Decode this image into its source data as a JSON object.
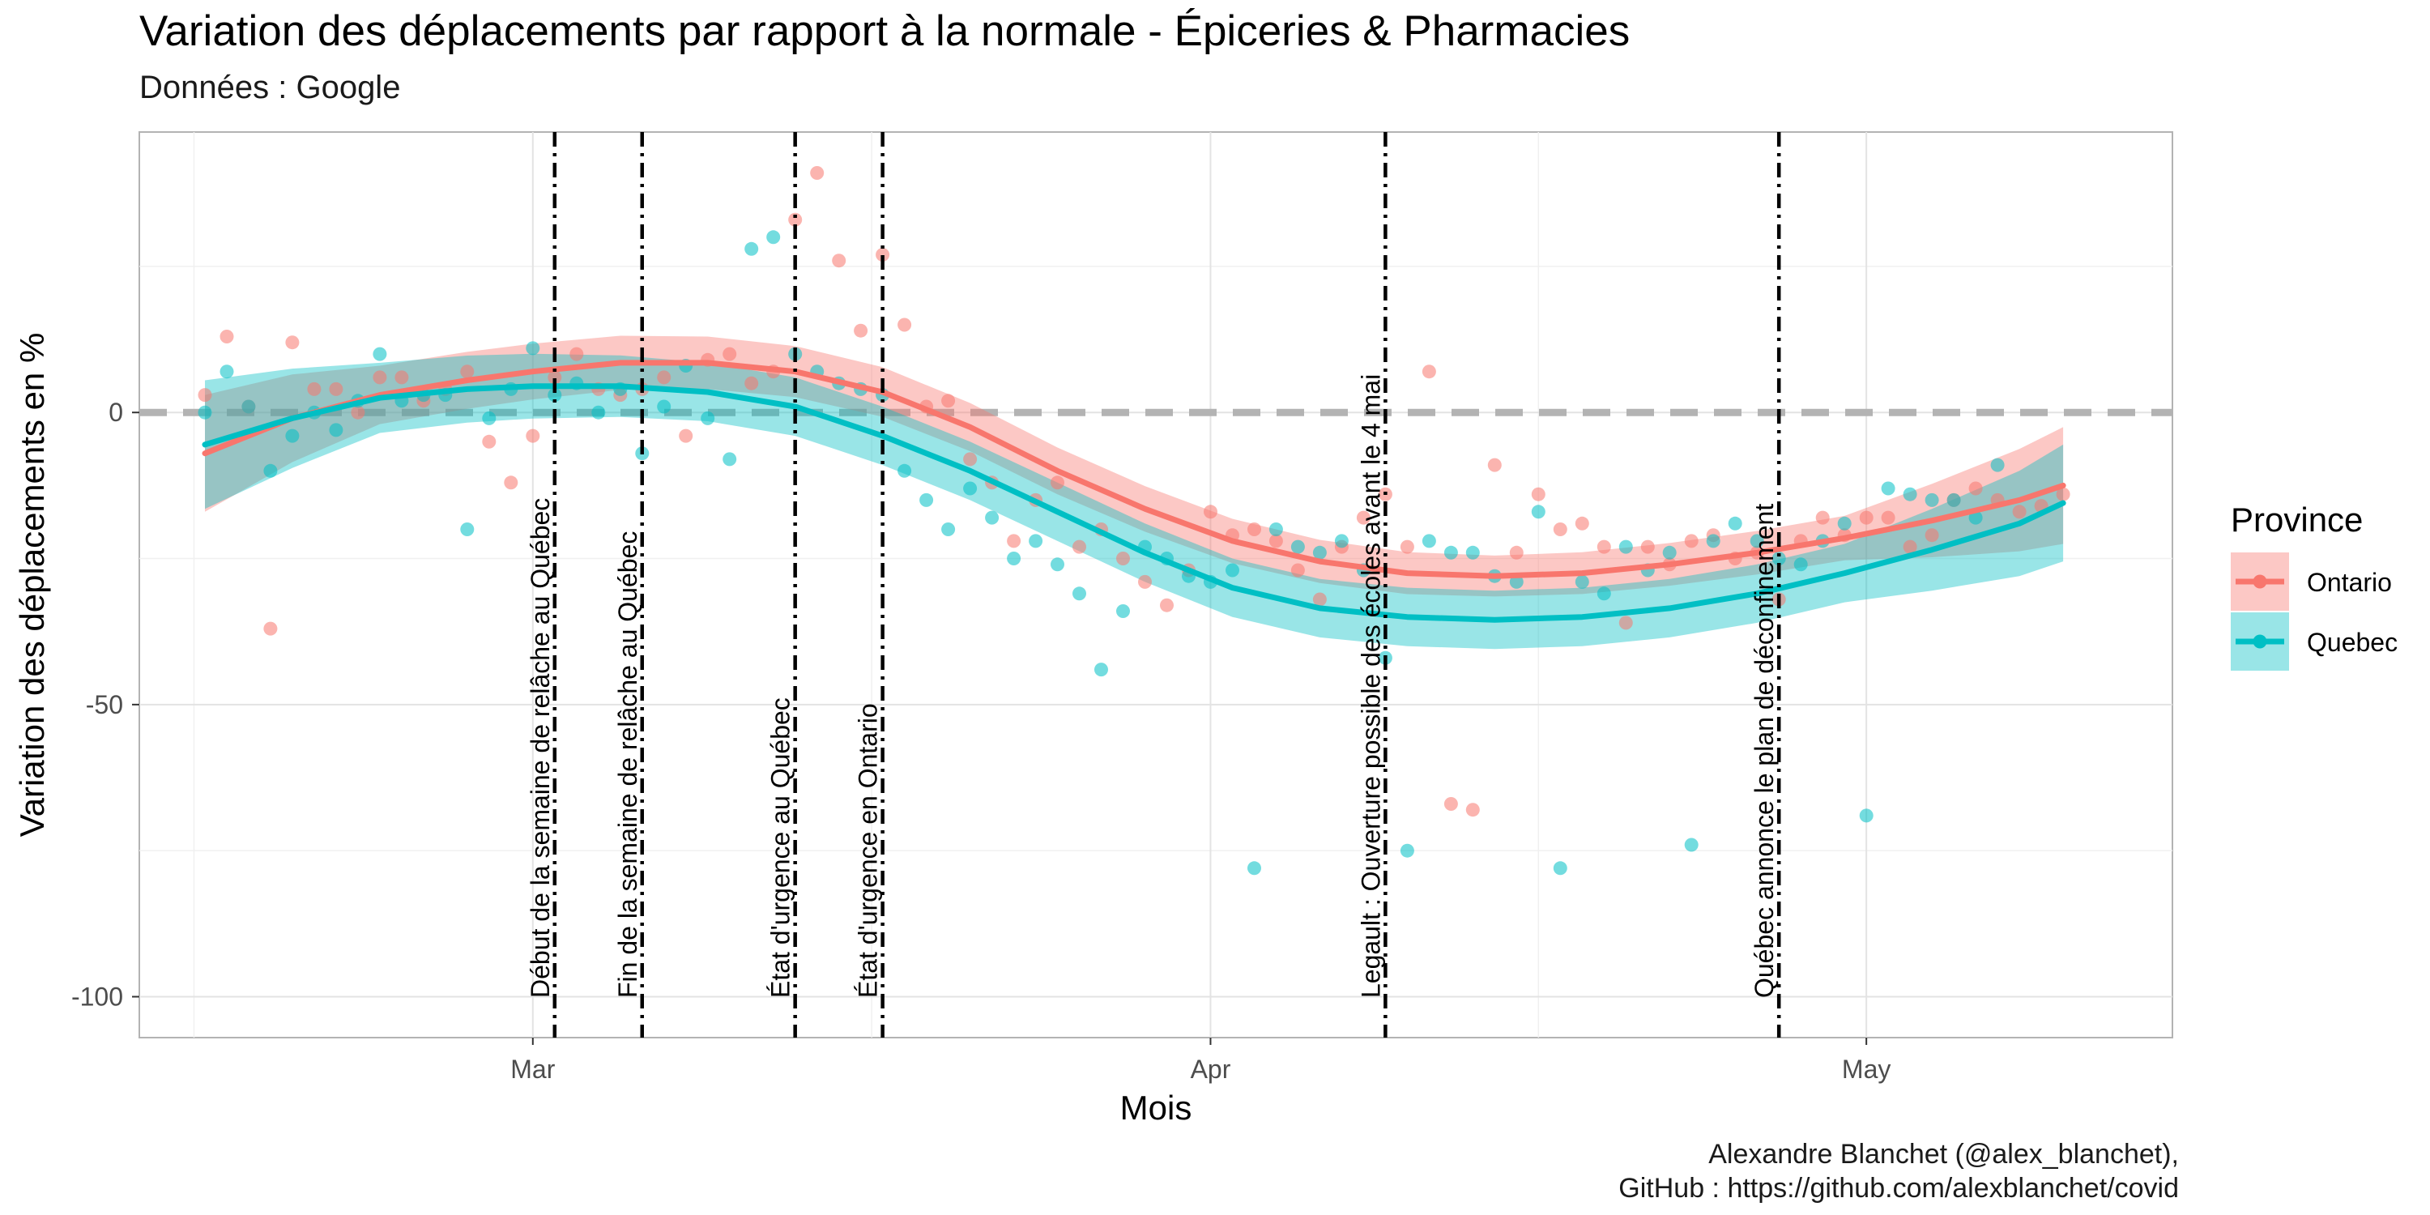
{
  "chart_data": {
    "type": "scatter",
    "title": "Variation des déplacements par rapport à la normale - Épiceries & Pharmacies",
    "subtitle": "Données : Google",
    "xlabel": "Mois",
    "ylabel": "Variation des déplacements en %",
    "caption_lines": [
      "Alexandre Blanchet (@alex_blanchet),",
      "GitHub : https://github.com/alexblanchet/covid"
    ],
    "x_axis": {
      "type": "date",
      "range": [
        "2020-02-12",
        "2020-05-15"
      ],
      "ticks": [
        "2020-03-01",
        "2020-04-01",
        "2020-05-01"
      ],
      "tick_labels": [
        "Mar",
        "Apr",
        "May"
      ]
    },
    "y_axis": {
      "range": [
        -107,
        48
      ],
      "ticks": [
        -100,
        -50,
        0
      ],
      "tick_labels": [
        "-100",
        "-50",
        "0"
      ]
    },
    "grid": true,
    "reference_line": {
      "y": 0,
      "style": "dashed",
      "color": "#b3b3b3"
    },
    "legend": {
      "title": "Province",
      "position": "right",
      "entries": [
        "Ontario",
        "Quebec"
      ]
    },
    "events": [
      {
        "date": "2020-03-02",
        "label": "Début de la semaine de relâche au Québec"
      },
      {
        "date": "2020-03-06",
        "label": "Fin de la semaine de relâche au Québec"
      },
      {
        "date": "2020-03-13",
        "label": "État d'urgence au Québec"
      },
      {
        "date": "2020-03-17",
        "label": "État d'urgence en Ontario"
      },
      {
        "date": "2020-04-09",
        "label": "Legault : Ouverture possible des écoles avant le 4 mai"
      },
      {
        "date": "2020-04-27",
        "label": "Québec annonce le plan de déconfinement"
      }
    ],
    "series": [
      {
        "name": "Ontario",
        "color": "#F8766D",
        "points": [
          [
            "2020-02-15",
            3
          ],
          [
            "2020-02-16",
            13
          ],
          [
            "2020-02-17",
            1
          ],
          [
            "2020-02-18",
            -37
          ],
          [
            "2020-02-19",
            12
          ],
          [
            "2020-02-20",
            4
          ],
          [
            "2020-02-21",
            4
          ],
          [
            "2020-02-22",
            0
          ],
          [
            "2020-02-23",
            6
          ],
          [
            "2020-02-24",
            6
          ],
          [
            "2020-02-25",
            2
          ],
          [
            "2020-02-26",
            4
          ],
          [
            "2020-02-27",
            7
          ],
          [
            "2020-02-28",
            -5
          ],
          [
            "2020-02-29",
            -12
          ],
          [
            "2020-03-01",
            -4
          ],
          [
            "2020-03-02",
            6
          ],
          [
            "2020-03-03",
            10
          ],
          [
            "2020-03-04",
            4
          ],
          [
            "2020-03-05",
            3
          ],
          [
            "2020-03-06",
            4
          ],
          [
            "2020-03-07",
            6
          ],
          [
            "2020-03-08",
            -4
          ],
          [
            "2020-03-09",
            9
          ],
          [
            "2020-03-10",
            10
          ],
          [
            "2020-03-11",
            5
          ],
          [
            "2020-03-12",
            7
          ],
          [
            "2020-03-13",
            33
          ],
          [
            "2020-03-14",
            41
          ],
          [
            "2020-03-15",
            26
          ],
          [
            "2020-03-16",
            14
          ],
          [
            "2020-03-17",
            27
          ],
          [
            "2020-03-18",
            15
          ],
          [
            "2020-03-19",
            1
          ],
          [
            "2020-03-20",
            2
          ],
          [
            "2020-03-21",
            -8
          ],
          [
            "2020-03-22",
            -12
          ],
          [
            "2020-03-23",
            -22
          ],
          [
            "2020-03-24",
            -15
          ],
          [
            "2020-03-25",
            -12
          ],
          [
            "2020-03-26",
            -23
          ],
          [
            "2020-03-27",
            -20
          ],
          [
            "2020-03-28",
            -25
          ],
          [
            "2020-03-29",
            -29
          ],
          [
            "2020-03-30",
            -33
          ],
          [
            "2020-03-31",
            -27
          ],
          [
            "2020-04-01",
            -17
          ],
          [
            "2020-04-02",
            -21
          ],
          [
            "2020-04-03",
            -20
          ],
          [
            "2020-04-04",
            -22
          ],
          [
            "2020-04-05",
            -27
          ],
          [
            "2020-04-06",
            -32
          ],
          [
            "2020-04-07",
            -23
          ],
          [
            "2020-04-08",
            -18
          ],
          [
            "2020-04-09",
            -14
          ],
          [
            "2020-04-10",
            -23
          ],
          [
            "2020-04-11",
            7
          ],
          [
            "2020-04-12",
            -67
          ],
          [
            "2020-04-13",
            -68
          ],
          [
            "2020-04-14",
            -9
          ],
          [
            "2020-04-15",
            -24
          ],
          [
            "2020-04-16",
            -14
          ],
          [
            "2020-04-17",
            -20
          ],
          [
            "2020-04-18",
            -19
          ],
          [
            "2020-04-19",
            -23
          ],
          [
            "2020-04-20",
            -36
          ],
          [
            "2020-04-21",
            -23
          ],
          [
            "2020-04-22",
            -26
          ],
          [
            "2020-04-23",
            -22
          ],
          [
            "2020-04-24",
            -21
          ],
          [
            "2020-04-25",
            -25
          ],
          [
            "2020-04-26",
            -24
          ],
          [
            "2020-04-27",
            -32
          ],
          [
            "2020-04-28",
            -22
          ],
          [
            "2020-04-29",
            -18
          ],
          [
            "2020-04-30",
            -21
          ],
          [
            "2020-05-01",
            -18
          ],
          [
            "2020-05-02",
            -18
          ],
          [
            "2020-05-03",
            -23
          ],
          [
            "2020-05-04",
            -21
          ],
          [
            "2020-05-05",
            -15
          ],
          [
            "2020-05-06",
            -13
          ],
          [
            "2020-05-07",
            -15
          ],
          [
            "2020-05-08",
            -17
          ],
          [
            "2020-05-09",
            -16
          ],
          [
            "2020-05-10",
            -14
          ]
        ],
        "smooth_fit": [
          [
            "2020-02-15",
            -7
          ],
          [
            "2020-02-19",
            -1
          ],
          [
            "2020-02-23",
            3
          ],
          [
            "2020-02-27",
            5.5
          ],
          [
            "2020-03-01",
            7
          ],
          [
            "2020-03-05",
            8.5
          ],
          [
            "2020-03-09",
            8.5
          ],
          [
            "2020-03-13",
            7
          ],
          [
            "2020-03-17",
            3.5
          ],
          [
            "2020-03-21",
            -2.5
          ],
          [
            "2020-03-25",
            -10
          ],
          [
            "2020-03-29",
            -16.5
          ],
          [
            "2020-04-02",
            -22
          ],
          [
            "2020-04-06",
            -25.5
          ],
          [
            "2020-04-10",
            -27.5
          ],
          [
            "2020-04-14",
            -28
          ],
          [
            "2020-04-18",
            -27.5
          ],
          [
            "2020-04-22",
            -26
          ],
          [
            "2020-04-26",
            -24
          ],
          [
            "2020-04-30",
            -21.5
          ],
          [
            "2020-05-04",
            -18.5
          ],
          [
            "2020-05-08",
            -15
          ],
          [
            "2020-05-10",
            -12.5
          ]
        ],
        "ci_halfwidth": [
          [
            "2020-02-15",
            10
          ],
          [
            "2020-02-23",
            5
          ],
          [
            "2020-03-09",
            4.5
          ],
          [
            "2020-03-25",
            4
          ],
          [
            "2020-04-14",
            3.5
          ],
          [
            "2020-04-30",
            3.8
          ],
          [
            "2020-05-10",
            10
          ]
        ]
      },
      {
        "name": "Quebec",
        "color": "#00BFC4",
        "points": [
          [
            "2020-02-15",
            0
          ],
          [
            "2020-02-16",
            7
          ],
          [
            "2020-02-17",
            1
          ],
          [
            "2020-02-18",
            -10
          ],
          [
            "2020-02-19",
            -4
          ],
          [
            "2020-02-20",
            0
          ],
          [
            "2020-02-21",
            -3
          ],
          [
            "2020-02-22",
            2
          ],
          [
            "2020-02-23",
            10
          ],
          [
            "2020-02-24",
            2
          ],
          [
            "2020-02-25",
            3
          ],
          [
            "2020-02-26",
            3
          ],
          [
            "2020-02-27",
            -20
          ],
          [
            "2020-02-28",
            -1
          ],
          [
            "2020-02-29",
            4
          ],
          [
            "2020-03-01",
            11
          ],
          [
            "2020-03-02",
            3
          ],
          [
            "2020-03-03",
            5
          ],
          [
            "2020-03-04",
            0
          ],
          [
            "2020-03-05",
            4
          ],
          [
            "2020-03-06",
            -7
          ],
          [
            "2020-03-07",
            1
          ],
          [
            "2020-03-08",
            8
          ],
          [
            "2020-03-09",
            -1
          ],
          [
            "2020-03-10",
            -8
          ],
          [
            "2020-03-11",
            28
          ],
          [
            "2020-03-12",
            30
          ],
          [
            "2020-03-13",
            10
          ],
          [
            "2020-03-14",
            7
          ],
          [
            "2020-03-15",
            5
          ],
          [
            "2020-03-16",
            4
          ],
          [
            "2020-03-17",
            3
          ],
          [
            "2020-03-18",
            -10
          ],
          [
            "2020-03-19",
            -15
          ],
          [
            "2020-03-20",
            -20
          ],
          [
            "2020-03-21",
            -13
          ],
          [
            "2020-03-22",
            -18
          ],
          [
            "2020-03-23",
            -25
          ],
          [
            "2020-03-24",
            -22
          ],
          [
            "2020-03-25",
            -26
          ],
          [
            "2020-03-26",
            -31
          ],
          [
            "2020-03-27",
            -44
          ],
          [
            "2020-03-28",
            -34
          ],
          [
            "2020-03-29",
            -23
          ],
          [
            "2020-03-30",
            -25
          ],
          [
            "2020-03-31",
            -28
          ],
          [
            "2020-04-01",
            -29
          ],
          [
            "2020-04-02",
            -27
          ],
          [
            "2020-04-03",
            -78
          ],
          [
            "2020-04-04",
            -20
          ],
          [
            "2020-04-05",
            -23
          ],
          [
            "2020-04-06",
            -24
          ],
          [
            "2020-04-07",
            -22
          ],
          [
            "2020-04-08",
            -27
          ],
          [
            "2020-04-09",
            -42
          ],
          [
            "2020-04-10",
            -75
          ],
          [
            "2020-04-11",
            -22
          ],
          [
            "2020-04-12",
            -24
          ],
          [
            "2020-04-13",
            -24
          ],
          [
            "2020-04-14",
            -28
          ],
          [
            "2020-04-15",
            -29
          ],
          [
            "2020-04-16",
            -17
          ],
          [
            "2020-04-17",
            -78
          ],
          [
            "2020-04-18",
            -29
          ],
          [
            "2020-04-19",
            -31
          ],
          [
            "2020-04-20",
            -23
          ],
          [
            "2020-04-21",
            -27
          ],
          [
            "2020-04-22",
            -24
          ],
          [
            "2020-04-23",
            -74
          ],
          [
            "2020-04-24",
            -22
          ],
          [
            "2020-04-25",
            -19
          ],
          [
            "2020-04-26",
            -22
          ],
          [
            "2020-04-27",
            -25
          ],
          [
            "2020-04-28",
            -26
          ],
          [
            "2020-04-29",
            -22
          ],
          [
            "2020-04-30",
            -19
          ],
          [
            "2020-05-01",
            -69
          ],
          [
            "2020-05-02",
            -13
          ],
          [
            "2020-05-03",
            -14
          ],
          [
            "2020-05-04",
            -15
          ],
          [
            "2020-05-05",
            -15
          ],
          [
            "2020-05-06",
            -18
          ],
          [
            "2020-05-07",
            -9
          ]
        ],
        "smooth_fit": [
          [
            "2020-02-15",
            -5.5
          ],
          [
            "2020-02-19",
            -1
          ],
          [
            "2020-02-23",
            2.5
          ],
          [
            "2020-02-27",
            4
          ],
          [
            "2020-03-01",
            4.5
          ],
          [
            "2020-03-05",
            4.5
          ],
          [
            "2020-03-09",
            3.5
          ],
          [
            "2020-03-13",
            1
          ],
          [
            "2020-03-17",
            -4
          ],
          [
            "2020-03-21",
            -10
          ],
          [
            "2020-03-25",
            -17
          ],
          [
            "2020-03-29",
            -24
          ],
          [
            "2020-04-02",
            -30
          ],
          [
            "2020-04-06",
            -33.5
          ],
          [
            "2020-04-10",
            -35
          ],
          [
            "2020-04-14",
            -35.5
          ],
          [
            "2020-04-18",
            -35
          ],
          [
            "2020-04-22",
            -33.5
          ],
          [
            "2020-04-26",
            -31
          ],
          [
            "2020-04-30",
            -27.5
          ],
          [
            "2020-05-04",
            -23.5
          ],
          [
            "2020-05-08",
            -19
          ],
          [
            "2020-05-10",
            -15.5
          ]
        ],
        "ci_halfwidth": [
          [
            "2020-02-15",
            11
          ],
          [
            "2020-02-23",
            6
          ],
          [
            "2020-03-09",
            5
          ],
          [
            "2020-03-25",
            5
          ],
          [
            "2020-04-14",
            5
          ],
          [
            "2020-04-30",
            5
          ],
          [
            "2020-05-10",
            10
          ]
        ]
      }
    ]
  }
}
